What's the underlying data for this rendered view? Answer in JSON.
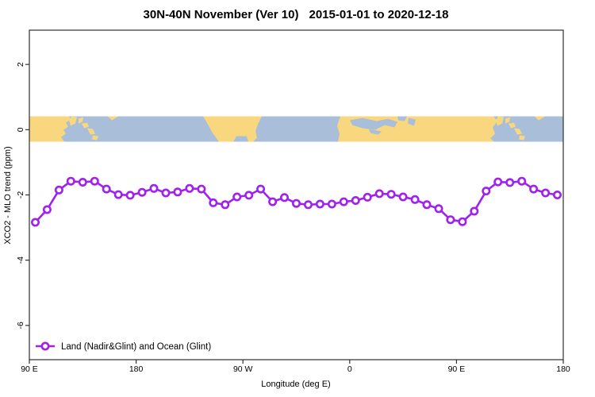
{
  "title": "30N-40N November (Ver 10)   2015-01-01 to 2020-12-18",
  "title_parts": {
    "left": "30N-40N November (Ver 10)",
    "right": "2015-01-01 to 2020-12-18"
  },
  "chart_data": {
    "type": "line",
    "title": "30N-40N November (Ver 10)   2015-01-01 to 2020-12-18",
    "xlabel": "Longitude (deg E)",
    "ylabel": "XCO2 - MLO trend (ppm)",
    "xlim": [
      90,
      540
    ],
    "ylim": [
      -7.05,
      3.05
    ],
    "grid": false,
    "legend_position": "bottom-left",
    "x_ticks": [
      {
        "value": 90,
        "label": "90 E"
      },
      {
        "value": 180,
        "label": "180"
      },
      {
        "value": 270,
        "label": "90 W"
      },
      {
        "value": 360,
        "label": "0"
      },
      {
        "value": 450,
        "label": "90 E"
      },
      {
        "value": 540,
        "label": "180"
      }
    ],
    "y_ticks": [
      {
        "value": 2,
        "label": "2"
      },
      {
        "value": 0,
        "label": "0"
      },
      {
        "value": -2,
        "label": "-2"
      },
      {
        "value": -4,
        "label": "-4"
      },
      {
        "value": -6,
        "label": "-6"
      }
    ],
    "series": [
      {
        "name": "Land (Nadir&Glint) and Ocean (Glint)",
        "color": "#A020F0",
        "marker": "open-circle",
        "x": [
          95,
          105,
          115,
          125,
          135,
          145,
          155,
          165,
          175,
          185,
          195,
          205,
          215,
          225,
          235,
          245,
          255,
          265,
          275,
          285,
          295,
          305,
          315,
          325,
          335,
          345,
          355,
          365,
          375,
          385,
          395,
          405,
          415,
          425,
          435,
          445,
          455,
          465,
          475,
          485,
          495,
          505,
          515,
          525,
          535
        ],
        "values": [
          -2.84,
          -2.45,
          -1.85,
          -1.58,
          -1.61,
          -1.58,
          -1.82,
          -1.99,
          -2.01,
          -1.92,
          -1.8,
          -1.94,
          -1.91,
          -1.8,
          -1.82,
          -2.24,
          -2.3,
          -2.06,
          -2.01,
          -1.82,
          -2.21,
          -2.08,
          -2.26,
          -2.3,
          -2.28,
          -2.28,
          -2.21,
          -2.17,
          -2.07,
          -1.96,
          -1.98,
          -2.06,
          -2.14,
          -2.3,
          -2.42,
          -2.76,
          -2.82,
          -2.5,
          -1.88,
          -1.6,
          -1.62,
          -1.58,
          -1.82,
          -1.94,
          -2.0
        ]
      }
    ],
    "map_band": {
      "description": "world coastline strip 30N-40N drawn along the zero line",
      "ylim": [
        -0.36,
        0.41
      ],
      "land_color": "#F9D77E",
      "ocean_color": "#A9BFD9"
    },
    "axis_color": "#2F2F2F"
  },
  "legend": {
    "label": "Land (Nadir&Glint) and Ocean (Glint)"
  }
}
